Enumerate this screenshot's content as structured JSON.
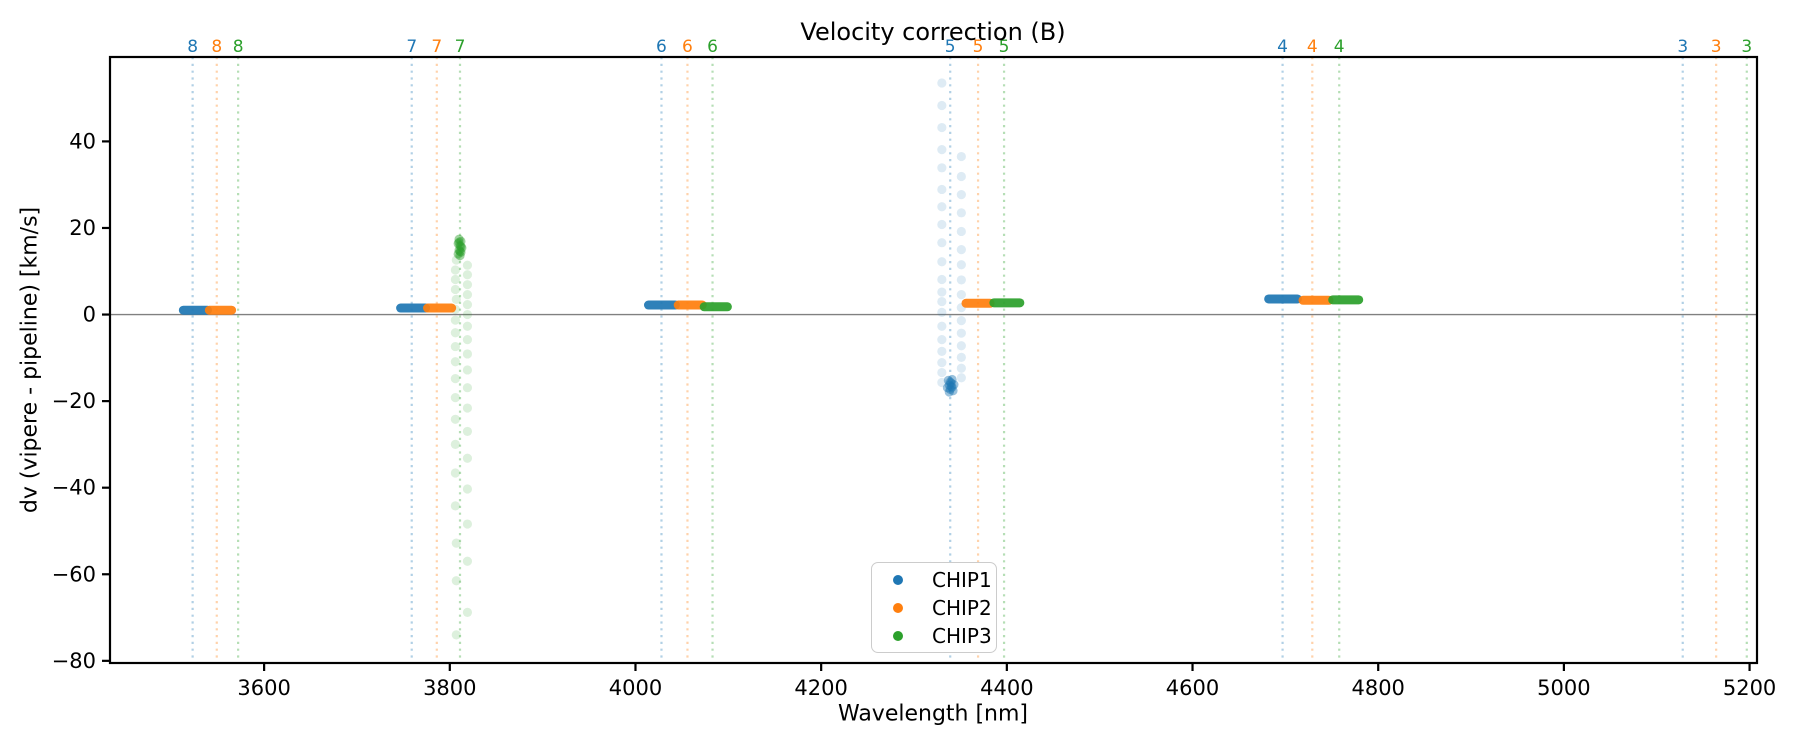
{
  "chart_data": {
    "type": "scatter",
    "title": "Velocity correction (B)",
    "xlabel": "Wavelength [nm]",
    "ylabel": "dv (vipere - pipeline) [km/s]",
    "xlim": [
      3434,
      5208
    ],
    "ylim": [
      -80.5,
      59.5
    ],
    "x_ticks": [
      3600,
      3800,
      4000,
      4200,
      4400,
      4600,
      4800,
      5000,
      5200
    ],
    "y_ticks": [
      -80,
      -60,
      -40,
      -20,
      0,
      20,
      40
    ],
    "grid": false,
    "zero_line_y": 0,
    "axis_color": "#000000",
    "zero_line_color": "#808080",
    "series": [
      {
        "name": "CHIP1",
        "color": "#1f77b4"
      },
      {
        "name": "CHIP2",
        "color": "#ff7f0e"
      },
      {
        "name": "CHIP3",
        "color": "#2ca02c"
      }
    ],
    "order_markers": [
      {
        "order": "8",
        "lines": {
          "CHIP1": 3523,
          "CHIP2": 3549,
          "CHIP3": 3572
        }
      },
      {
        "order": "7",
        "lines": {
          "CHIP1": 3759,
          "CHIP2": 3786,
          "CHIP3": 3811
        }
      },
      {
        "order": "6",
        "lines": {
          "CHIP1": 4028,
          "CHIP2": 4056,
          "CHIP3": 4083
        }
      },
      {
        "order": "5",
        "lines": {
          "CHIP1": 4339,
          "CHIP2": 4369,
          "CHIP3": 4397
        }
      },
      {
        "order": "4",
        "lines": {
          "CHIP1": 4697,
          "CHIP2": 4729,
          "CHIP3": 4758
        }
      },
      {
        "order": "3",
        "lines": {
          "CHIP1": 5128,
          "CHIP2": 5164,
          "CHIP3": 5197
        }
      }
    ],
    "marker_line_opacity": 0.35,
    "clusters": [
      {
        "series": "CHIP1",
        "order": "8",
        "wavelength_range": [
          3513,
          3539
        ],
        "dv": 1.0
      },
      {
        "series": "CHIP2",
        "order": "8",
        "wavelength_range": [
          3541,
          3565
        ],
        "dv": 1.0
      },
      {
        "series": "CHIP1",
        "order": "7",
        "wavelength_range": [
          3747,
          3774
        ],
        "dv": 1.5
      },
      {
        "series": "CHIP2",
        "order": "7",
        "wavelength_range": [
          3776,
          3802
        ],
        "dv": 1.5
      },
      {
        "series": "CHIP1",
        "order": "6",
        "wavelength_range": [
          4014,
          4043
        ],
        "dv": 2.2
      },
      {
        "series": "CHIP2",
        "order": "6",
        "wavelength_range": [
          4046,
          4072
        ],
        "dv": 2.2
      },
      {
        "series": "CHIP3",
        "order": "6",
        "wavelength_range": [
          4074,
          4099
        ],
        "dv": 1.8
      },
      {
        "series": "CHIP2",
        "order": "5",
        "wavelength_range": [
          4356,
          4382
        ],
        "dv": 2.6
      },
      {
        "series": "CHIP3",
        "order": "5",
        "wavelength_range": [
          4386,
          4414
        ],
        "dv": 2.7
      },
      {
        "series": "CHIP1",
        "order": "4",
        "wavelength_range": [
          4682,
          4713
        ],
        "dv": 3.6
      },
      {
        "series": "CHIP2",
        "order": "4",
        "wavelength_range": [
          4719,
          4747
        ],
        "dv": 3.3
      },
      {
        "series": "CHIP3",
        "order": "4",
        "wavelength_range": [
          4751,
          4779
        ],
        "dv": 3.4
      }
    ],
    "outlier_streaks": [
      {
        "series": "CHIP3",
        "order": "7",
        "point_opacity": 0.16,
        "points": [
          [
            3807,
            12.6
          ],
          [
            3819,
            11.4
          ],
          [
            3806,
            10.3
          ],
          [
            3819,
            9.2
          ],
          [
            3806,
            8.1
          ],
          [
            3819,
            6.9
          ],
          [
            3806,
            5.8
          ],
          [
            3819,
            4.6
          ],
          [
            3807,
            3.5
          ],
          [
            3819,
            2.3
          ],
          [
            3806,
            1.2
          ],
          [
            3819,
            0.0
          ],
          [
            3806,
            -1.3
          ],
          [
            3819,
            -2.7
          ],
          [
            3806,
            -4.2
          ],
          [
            3819,
            -5.8
          ],
          [
            3806,
            -7.4
          ],
          [
            3819,
            -9.1
          ],
          [
            3806,
            -10.9
          ],
          [
            3819,
            -12.8
          ],
          [
            3806,
            -14.8
          ],
          [
            3819,
            -16.9
          ],
          [
            3806,
            -19.2
          ],
          [
            3819,
            -21.6
          ],
          [
            3806,
            -24.2
          ],
          [
            3819,
            -27.0
          ],
          [
            3806,
            -30.0
          ],
          [
            3819,
            -33.2
          ],
          [
            3806,
            -36.6
          ],
          [
            3819,
            -40.3
          ],
          [
            3806,
            -44.2
          ],
          [
            3819,
            -48.4
          ],
          [
            3807,
            -52.8
          ],
          [
            3819,
            -57.0
          ],
          [
            3807,
            -61.5
          ],
          [
            3819,
            -68.8
          ],
          [
            3807,
            -74.0
          ]
        ],
        "blob_opacity": 0.45,
        "blob_points": [
          [
            3810,
            17.4
          ],
          [
            3812,
            16.9
          ],
          [
            3809,
            16.4
          ],
          [
            3811,
            15.9
          ],
          [
            3813,
            15.4
          ],
          [
            3810,
            14.9
          ],
          [
            3812,
            14.4
          ],
          [
            3809,
            14.0
          ],
          [
            3811,
            13.6
          ],
          [
            3810,
            16.7
          ],
          [
            3812,
            15.7
          ],
          [
            3811,
            14.6
          ]
        ]
      },
      {
        "series": "CHIP1",
        "order": "5",
        "point_opacity": 0.15,
        "points": [
          [
            4330,
            53.5
          ],
          [
            4330,
            48.3
          ],
          [
            4330,
            43.2
          ],
          [
            4330,
            38.1
          ],
          [
            4351,
            36.5
          ],
          [
            4330,
            33.9
          ],
          [
            4351,
            31.9
          ],
          [
            4330,
            28.9
          ],
          [
            4351,
            27.7
          ],
          [
            4330,
            24.9
          ],
          [
            4351,
            23.5
          ],
          [
            4330,
            20.8
          ],
          [
            4351,
            19.2
          ],
          [
            4330,
            16.6
          ],
          [
            4351,
            15.0
          ],
          [
            4330,
            12.2
          ],
          [
            4351,
            11.5
          ],
          [
            4330,
            8.1
          ],
          [
            4351,
            8.0
          ],
          [
            4330,
            5.2
          ],
          [
            4351,
            4.6
          ],
          [
            4330,
            3.0
          ],
          [
            4351,
            1.6
          ],
          [
            4330,
            0.5
          ],
          [
            4351,
            -1.4
          ],
          [
            4330,
            -2.7
          ],
          [
            4351,
            -4.3
          ],
          [
            4330,
            -5.8
          ],
          [
            4351,
            -7.2
          ],
          [
            4330,
            -8.5
          ],
          [
            4351,
            -9.9
          ],
          [
            4330,
            -11.1
          ],
          [
            4351,
            -12.4
          ],
          [
            4330,
            -13.4
          ],
          [
            4351,
            -14.6
          ],
          [
            4330,
            -15.7
          ]
        ],
        "blob_opacity": 0.45,
        "blob_points": [
          [
            4337,
            -15.2
          ],
          [
            4340,
            -15.8
          ],
          [
            4338,
            -16.3
          ],
          [
            4341,
            -16.8
          ],
          [
            4339,
            -17.3
          ],
          [
            4342,
            -17.6
          ],
          [
            4338,
            -17.9
          ],
          [
            4340,
            -16.6
          ],
          [
            4339,
            -15.6
          ],
          [
            4341,
            -15.0
          ],
          [
            4336,
            -16.9
          ],
          [
            4343,
            -16.2
          ]
        ]
      }
    ],
    "legend": {
      "entries": [
        "CHIP1",
        "CHIP2",
        "CHIP3"
      ]
    }
  }
}
